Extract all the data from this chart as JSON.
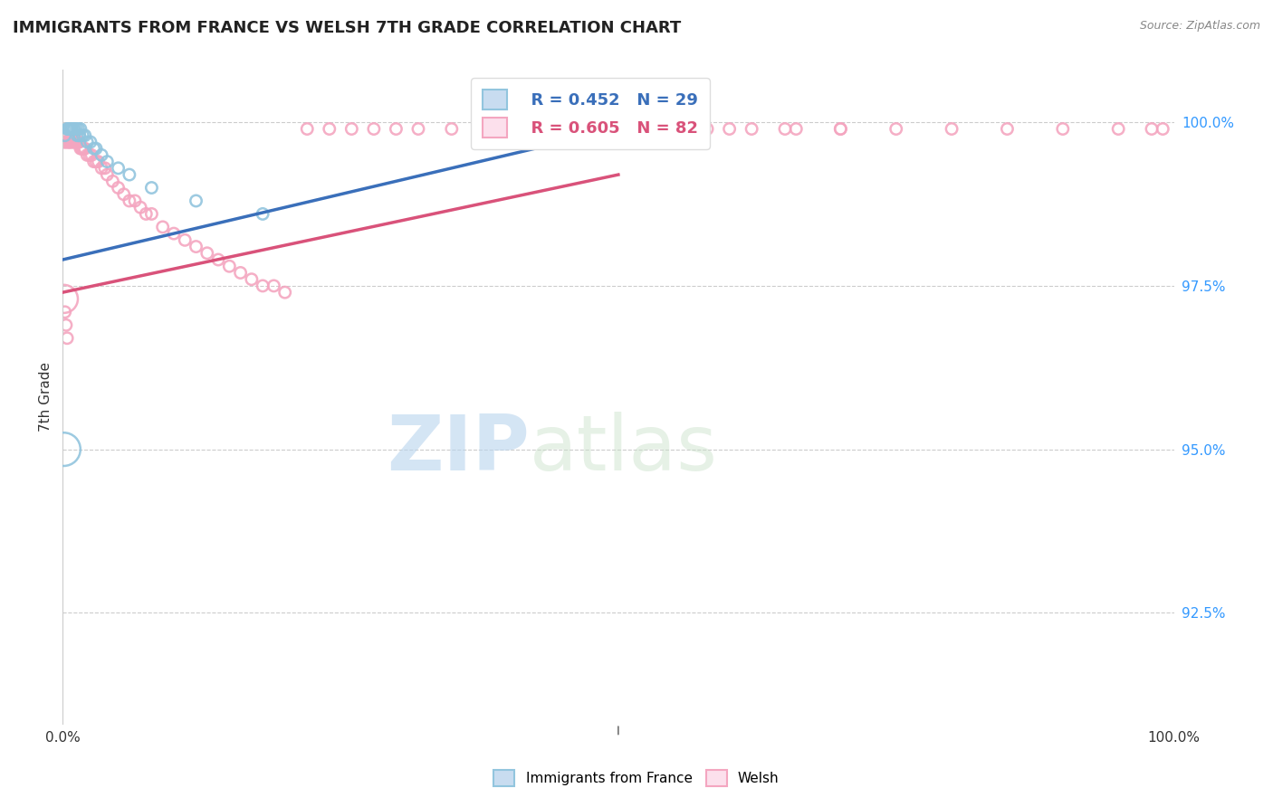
{
  "title": "IMMIGRANTS FROM FRANCE VS WELSH 7TH GRADE CORRELATION CHART",
  "source": "Source: ZipAtlas.com",
  "ylabel": "7th Grade",
  "ylabel_right_labels": [
    "100.0%",
    "97.5%",
    "95.0%",
    "92.5%"
  ],
  "ylabel_right_values": [
    1.0,
    0.975,
    0.95,
    0.925
  ],
  "xlim": [
    0.0,
    1.0
  ],
  "ylim": [
    0.908,
    1.008
  ],
  "legend_label_blue": "Immigrants from France",
  "legend_label_pink": "Welsh",
  "legend_R_blue": "R = 0.452",
  "legend_N_blue": "N = 29",
  "legend_R_pink": "R = 0.605",
  "legend_N_pink": "N = 82",
  "blue_color": "#92c5de",
  "pink_color": "#f4a6c0",
  "blue_line_color": "#3a6fba",
  "pink_line_color": "#d9527a",
  "watermark_zip": "ZIP",
  "watermark_atlas": "atlas",
  "blue_scatter_x": [
    0.002,
    0.004,
    0.005,
    0.006,
    0.007,
    0.008,
    0.008,
    0.01,
    0.01,
    0.012,
    0.013,
    0.014,
    0.015,
    0.015,
    0.016,
    0.018,
    0.02,
    0.022,
    0.025,
    0.028,
    0.03,
    0.035,
    0.04,
    0.05,
    0.06,
    0.08,
    0.12,
    0.18,
    0.001
  ],
  "blue_scatter_y": [
    0.998,
    0.999,
    0.999,
    0.999,
    0.999,
    0.999,
    0.999,
    0.999,
    0.999,
    0.999,
    0.998,
    0.999,
    0.998,
    0.998,
    0.999,
    0.998,
    0.998,
    0.997,
    0.997,
    0.996,
    0.996,
    0.995,
    0.994,
    0.993,
    0.992,
    0.99,
    0.988,
    0.986,
    0.95
  ],
  "blue_scatter_sizes": [
    80,
    80,
    80,
    80,
    80,
    80,
    80,
    80,
    80,
    80,
    80,
    80,
    80,
    80,
    80,
    80,
    80,
    80,
    80,
    80,
    80,
    80,
    80,
    80,
    80,
    80,
    80,
    80,
    700
  ],
  "pink_scatter_x": [
    0.001,
    0.002,
    0.003,
    0.004,
    0.005,
    0.006,
    0.006,
    0.007,
    0.008,
    0.009,
    0.01,
    0.011,
    0.012,
    0.013,
    0.014,
    0.015,
    0.016,
    0.017,
    0.018,
    0.019,
    0.02,
    0.022,
    0.024,
    0.026,
    0.028,
    0.03,
    0.032,
    0.035,
    0.038,
    0.04,
    0.045,
    0.05,
    0.055,
    0.06,
    0.065,
    0.07,
    0.075,
    0.08,
    0.09,
    0.1,
    0.11,
    0.12,
    0.13,
    0.14,
    0.15,
    0.16,
    0.17,
    0.18,
    0.19,
    0.2,
    0.22,
    0.24,
    0.26,
    0.28,
    0.3,
    0.32,
    0.35,
    0.38,
    0.4,
    0.43,
    0.46,
    0.49,
    0.52,
    0.55,
    0.58,
    0.62,
    0.66,
    0.7,
    0.75,
    0.8,
    0.85,
    0.9,
    0.95,
    0.98,
    0.99,
    0.6,
    0.65,
    0.7,
    0.001,
    0.002,
    0.003,
    0.004
  ],
  "pink_scatter_y": [
    0.997,
    0.997,
    0.997,
    0.997,
    0.997,
    0.997,
    0.997,
    0.997,
    0.997,
    0.997,
    0.997,
    0.997,
    0.997,
    0.997,
    0.997,
    0.997,
    0.996,
    0.996,
    0.996,
    0.996,
    0.996,
    0.995,
    0.995,
    0.995,
    0.994,
    0.994,
    0.994,
    0.993,
    0.993,
    0.992,
    0.991,
    0.99,
    0.989,
    0.988,
    0.988,
    0.987,
    0.986,
    0.986,
    0.984,
    0.983,
    0.982,
    0.981,
    0.98,
    0.979,
    0.978,
    0.977,
    0.976,
    0.975,
    0.975,
    0.974,
    0.999,
    0.999,
    0.999,
    0.999,
    0.999,
    0.999,
    0.999,
    0.999,
    0.999,
    0.999,
    0.999,
    0.999,
    0.999,
    0.999,
    0.999,
    0.999,
    0.999,
    0.999,
    0.999,
    0.999,
    0.999,
    0.999,
    0.999,
    0.999,
    0.999,
    0.999,
    0.999,
    0.999,
    0.973,
    0.971,
    0.969,
    0.967
  ],
  "pink_scatter_sizes": [
    80,
    80,
    80,
    80,
    80,
    80,
    80,
    80,
    80,
    80,
    80,
    80,
    80,
    80,
    80,
    80,
    80,
    80,
    80,
    80,
    80,
    80,
    80,
    80,
    80,
    80,
    80,
    80,
    80,
    80,
    80,
    80,
    80,
    80,
    80,
    80,
    80,
    80,
    80,
    80,
    80,
    80,
    80,
    80,
    80,
    80,
    80,
    80,
    80,
    80,
    80,
    80,
    80,
    80,
    80,
    80,
    80,
    80,
    80,
    80,
    80,
    80,
    80,
    80,
    80,
    80,
    80,
    80,
    80,
    80,
    80,
    80,
    80,
    80,
    80,
    80,
    80,
    80,
    500,
    80,
    80,
    80
  ],
  "blue_trendline": [
    [
      0.0,
      0.5
    ],
    [
      0.979,
      0.999
    ]
  ],
  "pink_trendline": [
    [
      0.0,
      0.5
    ],
    [
      0.974,
      0.992
    ]
  ]
}
